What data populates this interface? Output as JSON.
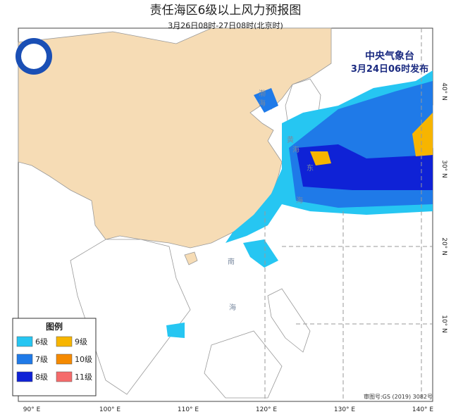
{
  "header": {
    "title": "责任海区6级以上风力预报图",
    "subtitle": "3月26日08时-27日08时(北京时)"
  },
  "issuer": {
    "agency": "中央气象台",
    "issued": "3月24日06时发布"
  },
  "legend": {
    "title": "图例",
    "items": [
      {
        "label": "6级",
        "color": "#26c6f2"
      },
      {
        "label": "9级",
        "color": "#f7b500"
      },
      {
        "label": "7级",
        "color": "#1f7ae8"
      },
      {
        "label": "10级",
        "color": "#f58a00"
      },
      {
        "label": "8级",
        "color": "#0f22d6"
      },
      {
        "label": "11级",
        "color": "#f56b6b"
      }
    ]
  },
  "lon_labels": [
    "90° E",
    "100° E",
    "110° E",
    "120° E",
    "130° E",
    "140° E"
  ],
  "lat_labels": [
    "40° N",
    "30° N",
    "20° N",
    "10° N"
  ],
  "sea_labels": [
    "渤",
    "海",
    "黄",
    "海",
    "东",
    "海",
    "南",
    "海"
  ],
  "approval": "审图号:GS (2019) 3082号"
}
